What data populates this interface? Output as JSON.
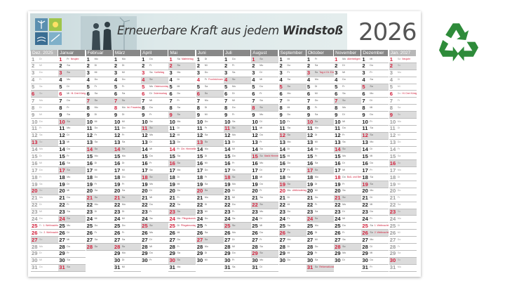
{
  "banner": {
    "title_regular": "Erneuerbare Kraft aus jedem ",
    "title_bold": "Windstoß",
    "year": "2026"
  },
  "months": [
    {
      "label": "Dez. 2025",
      "start": 1,
      "days": 31,
      "faded": true
    },
    {
      "label": "Januar",
      "start": 4,
      "days": 31
    },
    {
      "label": "Februar",
      "start": 0,
      "days": 28
    },
    {
      "label": "März",
      "start": 0,
      "days": 31
    },
    {
      "label": "April",
      "start": 3,
      "days": 30
    },
    {
      "label": "Mai",
      "start": 5,
      "days": 31
    },
    {
      "label": "Juni",
      "start": 1,
      "days": 30
    },
    {
      "label": "Juli",
      "start": 3,
      "days": 31
    },
    {
      "label": "August",
      "start": 6,
      "days": 31
    },
    {
      "label": "September",
      "start": 2,
      "days": 30
    },
    {
      "label": "Oktober",
      "start": 4,
      "days": 31
    },
    {
      "label": "November",
      "start": 0,
      "days": 30
    },
    {
      "label": "Dezember",
      "start": 2,
      "days": 31
    },
    {
      "label": "Jan. 2027",
      "start": 5,
      "days": 31,
      "faded": true
    }
  ],
  "weekday_abbr": [
    "Mo",
    "Di",
    "Mi",
    "Do",
    "Fr",
    "Sa",
    "So"
  ],
  "holidays": {
    "1-1": "Neujahr",
    "1-6": "Hl. Drei Könige",
    "3-8": "Int. Frauentag",
    "4-3": "Karfreitag",
    "4-5": "Ostersonntag",
    "4-6": "Ostermontag",
    "5-1": "Maifeiertag",
    "5-14": "Chr. Himmelfahrt",
    "5-24": "Pfingstsonntag",
    "5-25": "Pfingstmontag",
    "6-4": "Fronleichnam",
    "8-15": "Mariä Himmelfahrt",
    "9-20": "Weltkindertag",
    "10-3": "Tag d. Dt. Einheit",
    "10-31": "Reformationstag",
    "11-1": "Allerheiligen",
    "11-18": "Buß- und Bettag",
    "12-25": "1. Weihnachtstag",
    "12-26": "2. Weihnachtstag",
    "0-25": "1. Weihnachtstag",
    "0-26": "2. Weihnachtstag",
    "13-1": "Neujahr",
    "13-6": "Hl. Drei Könige"
  },
  "colors": {
    "header_gray": "#888888",
    "holiday_red": "#d1213c",
    "sunday_bg": "#dcdcdc",
    "recycle_green": "#2e8b3a"
  },
  "icons": [
    "wind-turbine-logo-icon",
    "recycle-icon"
  ]
}
